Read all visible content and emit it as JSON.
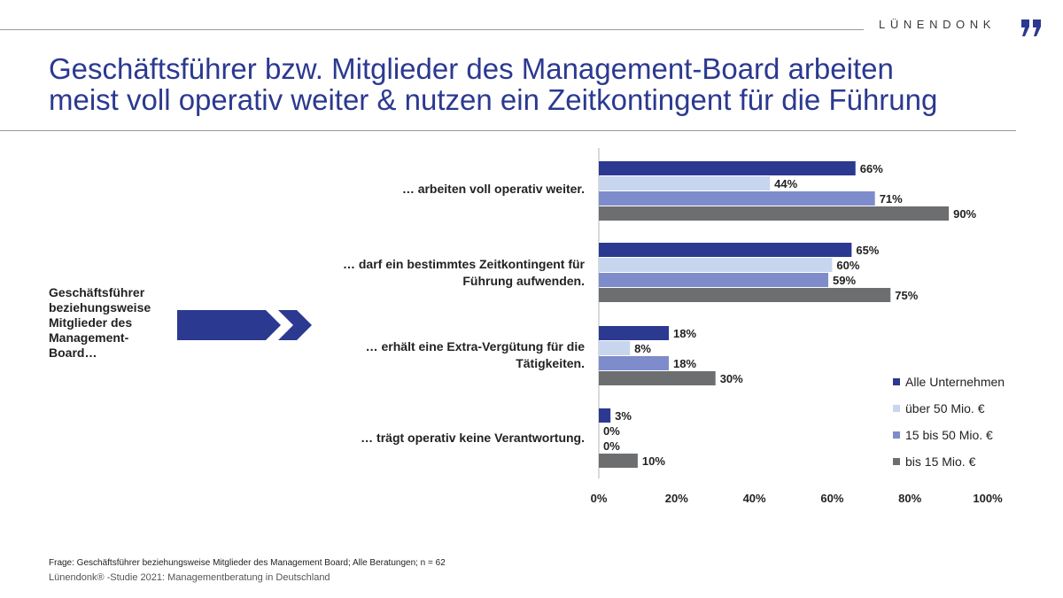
{
  "brand": {
    "name": "LÜNENDONK",
    "color": "#2b3990"
  },
  "title": {
    "line1": "Geschäftsführer bzw. Mitglieder des Management-Board arbeiten",
    "line2": "meist voll operativ weiter & nutzen ein Zeitkontingent für die Führung"
  },
  "lead_text": "Geschäftsführer beziehungsweise Mitglieder des Management-Board…",
  "chart_data": {
    "type": "bar",
    "orientation": "horizontal",
    "categories": [
      "… arbeiten voll operativ weiter.",
      "… darf ein bestimmtes Zeitkontingent für Führung aufwenden.",
      "… erhält eine Extra-Vergütung für die Tätigkeiten.",
      "… trägt operativ keine Verantwortung."
    ],
    "series": [
      {
        "name": "Alle Unternehmen",
        "color": "#2b3990",
        "values": [
          66,
          65,
          18,
          3
        ]
      },
      {
        "name": "über 50 Mio. €",
        "color": "#c7d5ef",
        "values": [
          44,
          60,
          8,
          0
        ]
      },
      {
        "name": "15 bis 50 Mio. €",
        "color": "#7e8ccc",
        "values": [
          71,
          59,
          18,
          0
        ]
      },
      {
        "name": "bis 15 Mio. €",
        "color": "#6d6e70",
        "values": [
          90,
          75,
          30,
          10
        ]
      }
    ],
    "value_suffix": "%",
    "xlim": [
      0,
      100
    ],
    "xticks": [
      "0%",
      "20%",
      "40%",
      "60%",
      "80%",
      "100%"
    ],
    "legend": "bottom-right",
    "grid": false
  },
  "footnote": "Frage: Geschäftsführer beziehungsweise Mitglieder des Management Board; Alle Beratungen; n = 62",
  "source": "Lünendonk® -Studie  2021: Managementberatung  in Deutschland"
}
